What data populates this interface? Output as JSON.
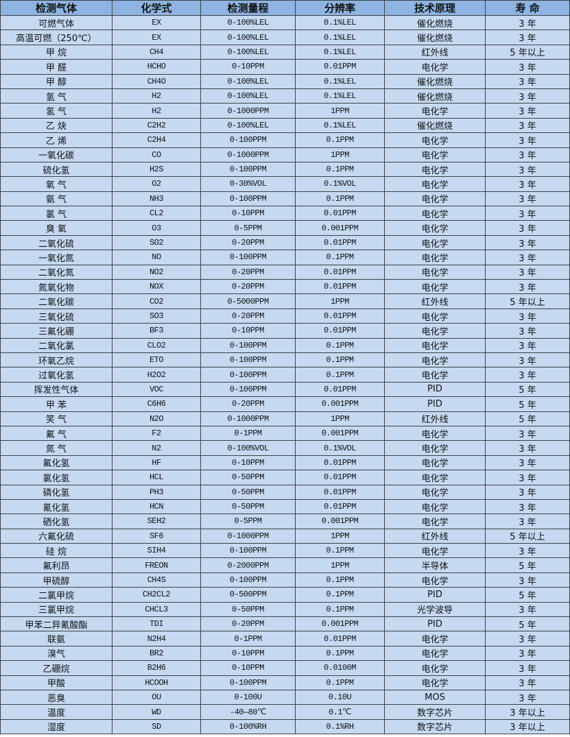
{
  "colors": {
    "header_bg": "#8db4e2",
    "row_bg": "#c5d9f1",
    "border": "#3f3f3f"
  },
  "headers": [
    "检测气体",
    "化学式",
    "检测量程",
    "分辨率",
    "技术原理",
    "寿 命"
  ],
  "rows": [
    [
      "可燃气体",
      "EX",
      "0-100%LEL",
      "0.1%LEL",
      "催化燃烧",
      "3 年"
    ],
    [
      "高温可燃（250℃）",
      "EX",
      "0-100%LEL",
      "0.1%LEL",
      "催化燃烧",
      "3 年"
    ],
    [
      "甲 烷",
      "CH4",
      "0-100%LEL",
      "0.1%LEL",
      "红外线",
      "5 年以上"
    ],
    [
      "甲 醛",
      "HCHO",
      "0-10PPM",
      "0.01PPM",
      "电化学",
      "3 年"
    ],
    [
      "甲 醇",
      "CH4O",
      "0-100%LEL",
      "0.1%LEL",
      "催化燃烧",
      "3 年"
    ],
    [
      "氢 气",
      "H2",
      "0-100%LEL",
      "0.1%LEL",
      "催化燃烧",
      "3 年"
    ],
    [
      "氢 气",
      "H2",
      "0-1000PPM",
      "1PPM",
      "电化学",
      "3 年"
    ],
    [
      "乙 炔",
      "C2H2",
      "0-100%LEL",
      "0.1%LEL",
      "催化燃烧",
      "3 年"
    ],
    [
      "乙 烯",
      "C2H4",
      "0-100PPM",
      "0.1PPM",
      "电化学",
      "3 年"
    ],
    [
      "一氧化碳",
      "CO",
      "0-1000PPM",
      "1PPM",
      "电化学",
      "3 年"
    ],
    [
      "硫化氢",
      "H2S",
      "0-100PPM",
      "0.1PPM",
      "电化学",
      "3 年"
    ],
    [
      "氧 气",
      "O2",
      "0-30%VOL",
      "0.1%VOL",
      "电化学",
      "3 年"
    ],
    [
      "氨 气",
      "NH3",
      "0-100PPM",
      "0.1PPM",
      "电化学",
      "3 年"
    ],
    [
      "氯 气",
      "CL2",
      "0-10PPM",
      "0.01PPM",
      "电化学",
      "3 年"
    ],
    [
      "臭 氧",
      "O3",
      "0-5PPM",
      "0.001PPM",
      "电化学",
      "3 年"
    ],
    [
      "二氧化硫",
      "SO2",
      "0-20PPM",
      "0.01PPM",
      "电化学",
      "3 年"
    ],
    [
      "一氧化氮",
      "NO",
      "0-100PPM",
      "0.1PPM",
      "电化学",
      "3 年"
    ],
    [
      "二氧化氮",
      "NO2",
      "0-20PPM",
      "0.01PPM",
      "电化学",
      "3 年"
    ],
    [
      "氮氧化物",
      "NOX",
      "0-20PPM",
      "0.01PPM",
      "电化学",
      "3 年"
    ],
    [
      "二氧化碳",
      "CO2",
      "0-5000PPM",
      "1PPM",
      "红外线",
      "5 年以上"
    ],
    [
      "三氧化硫",
      "SO3",
      "0-20PPM",
      "0.01PPM",
      "电化学",
      "3 年"
    ],
    [
      "三氟化硼",
      "BF3",
      "0-10PPM",
      "0.01PPM",
      "电化学",
      "3 年"
    ],
    [
      "二氧化氯",
      "CLO2",
      "0-100PPM",
      "0.1PPM",
      "电化学",
      "3 年"
    ],
    [
      "环氧乙烷",
      "ETO",
      "0-100PPM",
      "0.1PPM",
      "电化学",
      "3 年"
    ],
    [
      "过氧化氢",
      "H2O2",
      "0-100PPM",
      "0.1PPM",
      "电化学",
      "3 年"
    ],
    [
      "挥发性气体",
      "VOC",
      "0-100PPM",
      "0.01PPM",
      "PID",
      "5 年"
    ],
    [
      "甲 苯",
      "C6H6",
      "0-20PPM",
      "0.001PPM",
      "PID",
      "5 年"
    ],
    [
      "笑 气",
      "N2O",
      "0-1000PPM",
      "1PPM",
      "红外线",
      "5 年"
    ],
    [
      "氟 气",
      "F2",
      "0-1PPM",
      "0.001PPM",
      "电化学",
      "3 年"
    ],
    [
      "氮 气",
      "N2",
      "0-100%VOL",
      "0.1%VOL",
      "电化学",
      "3 年"
    ],
    [
      "氟化氢",
      "HF",
      "0-10PPM",
      "0.01PPM",
      "电化学",
      "3 年"
    ],
    [
      "氯化氢",
      "HCL",
      "0-50PPM",
      "0.01PPM",
      "电化学",
      "3 年"
    ],
    [
      "磷化氢",
      "PH3",
      "0-50PPM",
      "0.01PPM",
      "电化学",
      "3 年"
    ],
    [
      "氰化氢",
      "HCN",
      "0-50PPM",
      "0.01PPM",
      "电化学",
      "3 年"
    ],
    [
      "硒化氢",
      "SEH2",
      "0-5PPM",
      "0.001PPM",
      "电化学",
      "3 年"
    ],
    [
      "六氟化硫",
      "SF6",
      "0-1000PPM",
      "1PPM",
      "红外线",
      "5 年以上"
    ],
    [
      "硅 烷",
      "SIH4",
      "0-100PPM",
      "0.1PPM",
      "电化学",
      "3 年"
    ],
    [
      "氟利昂",
      "FREON",
      "0-2000PPM",
      "1PPM",
      "半导体",
      "5 年"
    ],
    [
      "甲硫醇",
      "CH4S",
      "0-100PPM",
      "0.1PPM",
      "电化学",
      "3 年"
    ],
    [
      "二氯甲烷",
      "CH2CL2",
      "0-500PPM",
      "0.1PPM",
      "PID",
      "5 年"
    ],
    [
      "三氯甲烷",
      "CHCL3",
      "0-50PPM",
      "0.1PPM",
      "光学波导",
      "3 年"
    ],
    [
      "甲苯二异氰酸酯",
      "TDI",
      "0-20PPM",
      "0.001PPM",
      "PID",
      "5 年"
    ],
    [
      "联氨",
      "N2H4",
      "0-1PPM",
      "0.01PPM",
      "电化学",
      "3 年"
    ],
    [
      "溴气",
      "BR2",
      "0-10PPM",
      "0.1PPM",
      "电化学",
      "3 年"
    ],
    [
      "乙硼烷",
      "B2H6",
      "0-10PPM",
      "0.0100M",
      "电化学",
      "3 年"
    ],
    [
      "甲酸",
      "HCOOH",
      "0-100PPM",
      "0.1PPM",
      "电化学",
      "3 年"
    ],
    [
      "恶臭",
      "OU",
      "0-100U",
      "0.10U",
      "MOS",
      "3 年"
    ],
    [
      "温度",
      "WD",
      "-40—80℃",
      "0.1℃",
      "数字芯片",
      "3 年以上"
    ],
    [
      "湿度",
      "SD",
      "0-100%RH",
      "0.1%RH",
      "数字芯片",
      "3 年以上"
    ]
  ]
}
